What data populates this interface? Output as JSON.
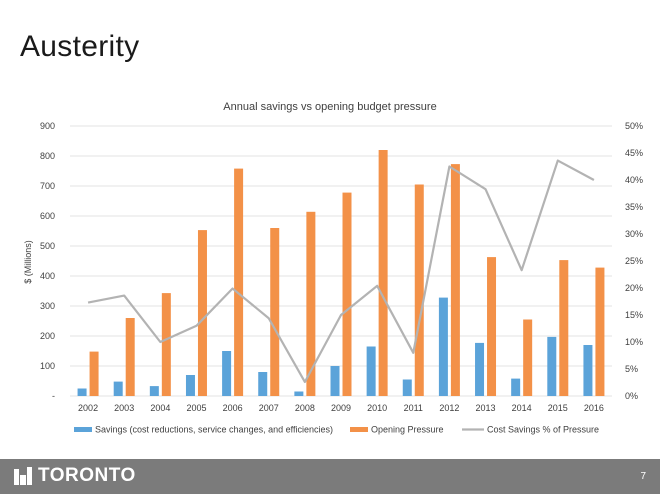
{
  "slide": {
    "title": "Austerity",
    "page_number": "7",
    "logo_text": "TORONTO"
  },
  "colors": {
    "savings": "#5ba3d9",
    "pressure": "#f39148",
    "pct_line": "#b3b3b3",
    "footer": "#7b7b7b"
  },
  "chart_data": {
    "type": "bar",
    "title": "Annual savings vs opening budget pressure",
    "ylabel": "$ (Millions)",
    "y2label": "",
    "categories": [
      "2002",
      "2003",
      "2004",
      "2005",
      "2006",
      "2007",
      "2008",
      "2009",
      "2010",
      "2011",
      "2012",
      "2013",
      "2014",
      "2015",
      "2016"
    ],
    "ylim": [
      0,
      900
    ],
    "y_ticks": [
      {
        "value": 0,
        "label": "-"
      },
      {
        "value": 100,
        "label": "100"
      },
      {
        "value": 200,
        "label": "200"
      },
      {
        "value": 300,
        "label": "300"
      },
      {
        "value": 400,
        "label": "400"
      },
      {
        "value": 500,
        "label": "500"
      },
      {
        "value": 600,
        "label": "600"
      },
      {
        "value": 700,
        "label": "700"
      },
      {
        "value": 800,
        "label": "800"
      },
      {
        "value": 900,
        "label": "900"
      }
    ],
    "y2lim": [
      0,
      50
    ],
    "y2_ticks": [
      {
        "value": 0,
        "label": "0%"
      },
      {
        "value": 5,
        "label": "5%"
      },
      {
        "value": 10,
        "label": "10%"
      },
      {
        "value": 15,
        "label": "15%"
      },
      {
        "value": 20,
        "label": "20%"
      },
      {
        "value": 25,
        "label": "25%"
      },
      {
        "value": 30,
        "label": "30%"
      },
      {
        "value": 35,
        "label": "35%"
      },
      {
        "value": 40,
        "label": "40%"
      },
      {
        "value": 45,
        "label": "45%"
      },
      {
        "value": 50,
        "label": "50%"
      }
    ],
    "grid": true,
    "legend_position": "bottom",
    "series": [
      {
        "name": "Savings (cost reductions, service changes, and efficiencies)",
        "type": "bar",
        "axis": "left",
        "values": [
          25,
          48,
          33,
          70,
          150,
          80,
          15,
          100,
          165,
          55,
          328,
          177,
          58,
          197,
          170
        ]
      },
      {
        "name": "Opening Pressure",
        "type": "bar",
        "axis": "left",
        "values": [
          148,
          260,
          343,
          553,
          758,
          560,
          614,
          678,
          820,
          705,
          773,
          463,
          255,
          453,
          428
        ]
      },
      {
        "name": "Cost Savings % of Pressure",
        "type": "line",
        "axis": "right",
        "values": [
          17.3,
          18.6,
          10.0,
          13.0,
          19.9,
          14.4,
          2.6,
          15.0,
          20.4,
          8.0,
          42.5,
          38.3,
          23.3,
          43.6,
          40.0
        ]
      }
    ]
  }
}
